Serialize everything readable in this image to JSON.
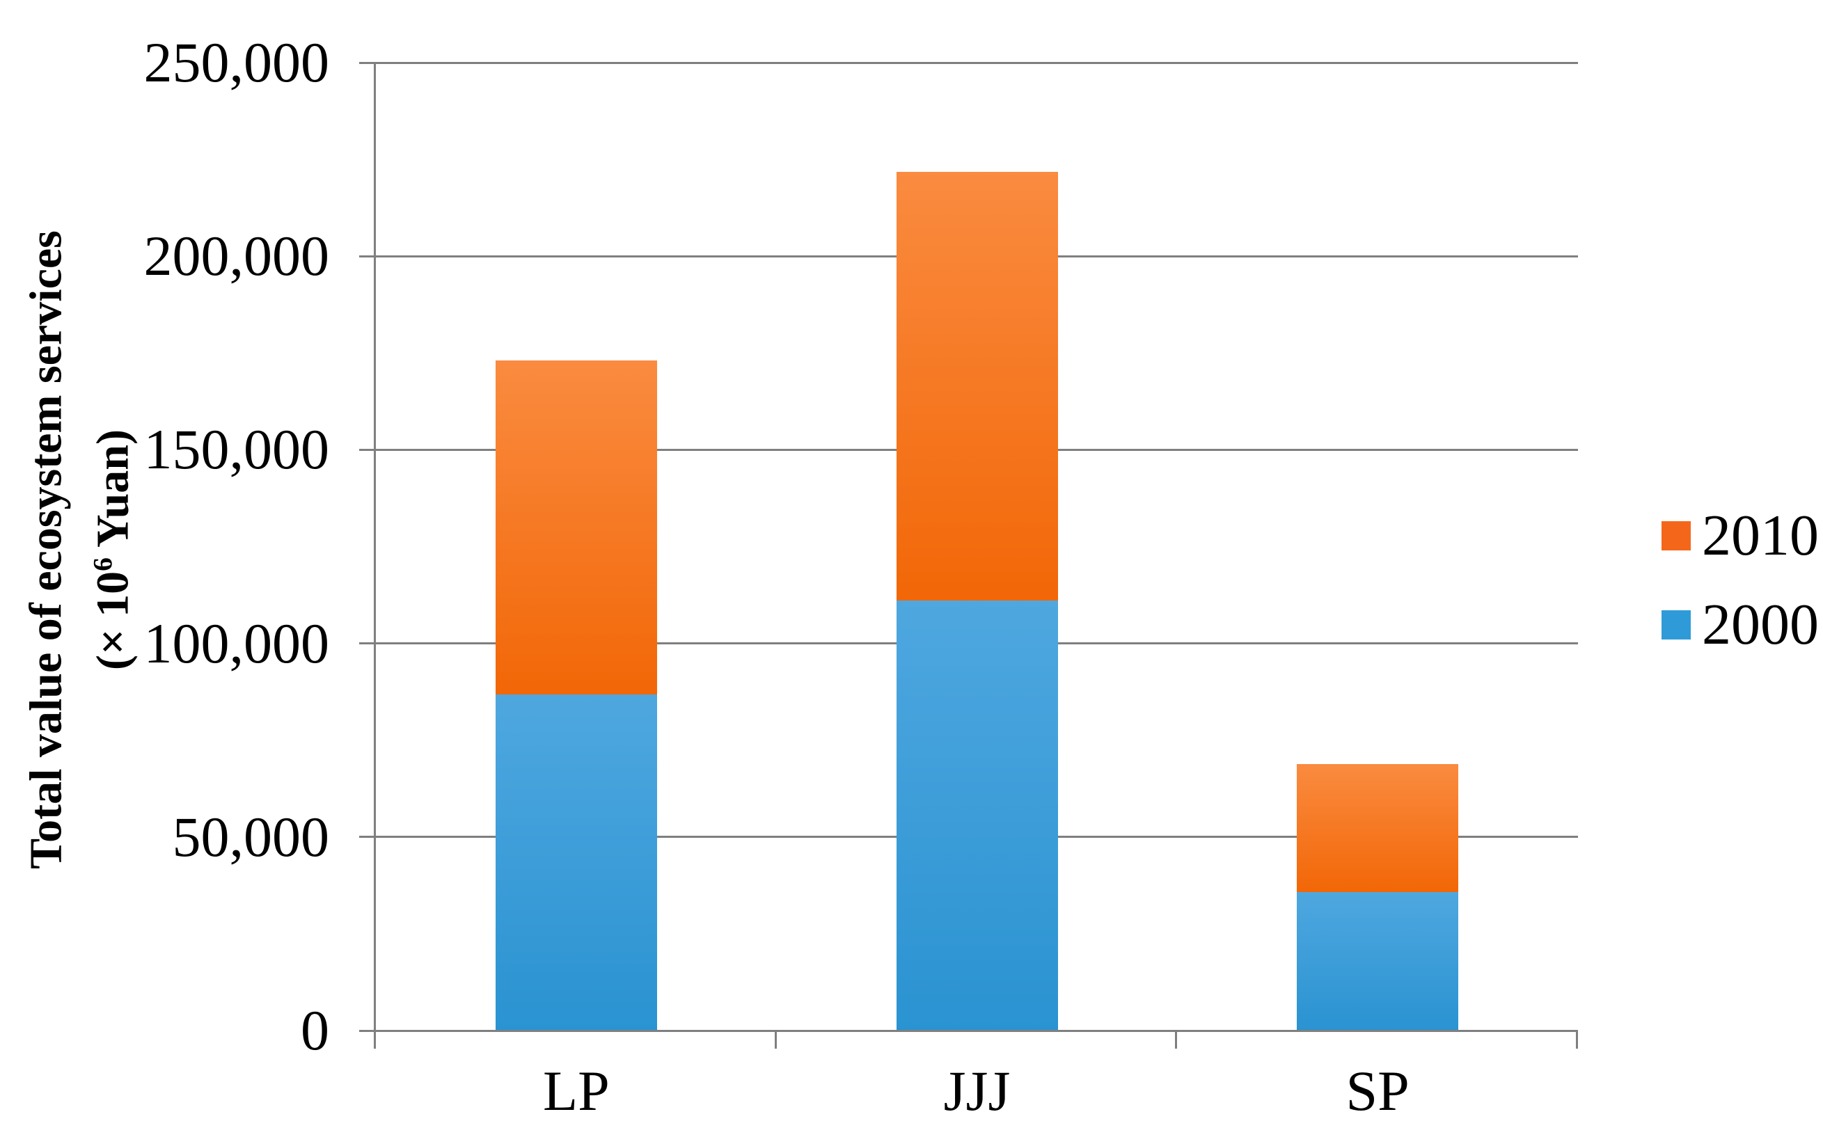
{
  "figure": {
    "background": "#ffffff",
    "y_axis_title": {
      "line1": "Total value of ecosystem services",
      "line2_prefix": "(× 10",
      "line2_sup": "6",
      "line2_suffix": " Yuan)"
    }
  },
  "chart_data": {
    "type": "bar",
    "subtype": "stacked-vertical",
    "title": "",
    "xlabel": "",
    "ylabel": "Total value of ecosystem services (× 10⁶ Yuan)",
    "categories": [
      "LP",
      "JJJ",
      "SP"
    ],
    "series": [
      {
        "name": "2000",
        "values": [
          86800,
          111000,
          35800
        ],
        "color_top": "#4FA7DF",
        "color_bottom": "#2A93D1",
        "legend_color": "#2E9BD8"
      },
      {
        "name": "2010",
        "values": [
          86300,
          110700,
          33100
        ],
        "color_top": "#FA8B40",
        "color_bottom": "#F26707",
        "legend_color": "#F4671B"
      }
    ],
    "stack_totals": [
      173100,
      221700,
      68900
    ],
    "ylim": [
      0,
      250000
    ],
    "ytick_interval": 50000,
    "yticks": [
      {
        "value": 250000,
        "label": "250,000"
      },
      {
        "value": 200000,
        "label": "200,000"
      },
      {
        "value": 150000,
        "label": "150,000"
      },
      {
        "value": 100000,
        "label": "100,000"
      },
      {
        "value": 50000,
        "label": "50,000"
      },
      {
        "value": 0,
        "label": "0"
      }
    ],
    "grid": true,
    "legend_position": "right",
    "legend_order": [
      "2010",
      "2000"
    ]
  },
  "style": {
    "grid_color": "#7F7F7F",
    "axis_color": "#7F7F7F",
    "text_color": "#000000"
  }
}
